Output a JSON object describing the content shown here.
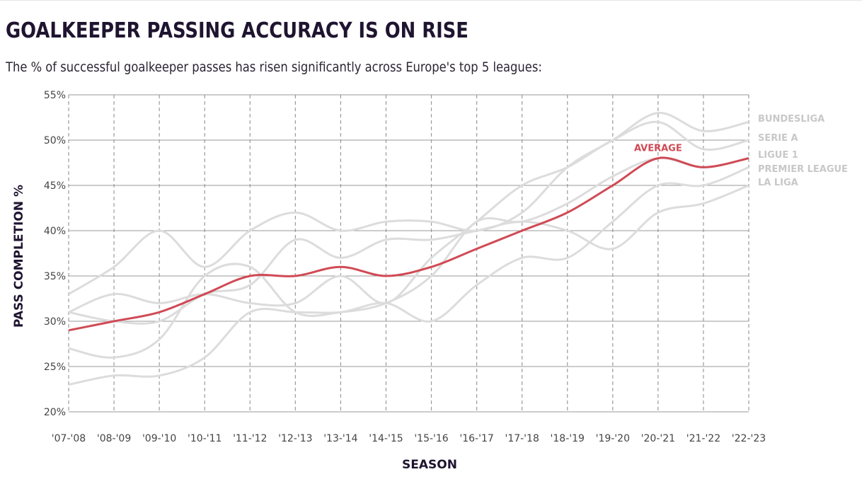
{
  "header": {
    "title": "GOALKEEPER PASSING ACCURACY IS ON RISE",
    "subtitle": "The % of successful goalkeeper passes has risen significantly across Europe's top 5 leagues:"
  },
  "colors": {
    "average": "#d04a55",
    "league": "#dcdcdc",
    "league_label": "#c8c8c8",
    "gridline": "#9a9a9a",
    "title": "#1f1430"
  },
  "chart_data": {
    "type": "line",
    "title": "GOALKEEPER PASSING ACCURACY IS ON RISE",
    "subtitle": "The % of successful goalkeeper passes has risen significantly across Europe's top 5 leagues:",
    "xlabel": "SEASON",
    "ylabel": "PASS COMPLETION %",
    "ylim": [
      20,
      55
    ],
    "y_ticks": [
      "20%",
      "25%",
      "30%",
      "35%",
      "40%",
      "45%",
      "50%",
      "55%"
    ],
    "y_tick_values": [
      20,
      25,
      30,
      35,
      40,
      45,
      50,
      55
    ],
    "grid": true,
    "categories": [
      "'07-'08",
      "'08-'09",
      "'09-'10",
      "'10-'11",
      "'11-'12",
      "'12-'13",
      "'13-'14",
      "'14-'15",
      "'15-'16",
      "'16-'17",
      "'17-'18",
      "'18-'19",
      "'19-'20",
      "'20-'21",
      "'21-'22",
      "'22-'23"
    ],
    "series": [
      {
        "name": "BUNDESLIGA",
        "values": [
          33,
          36,
          40,
          36,
          40,
          42,
          40,
          41,
          41,
          40,
          42,
          47,
          50,
          53,
          51,
          52
        ]
      },
      {
        "name": "SERIE A",
        "values": [
          31,
          33,
          32,
          33,
          32,
          32,
          35,
          32,
          37,
          41,
          45,
          47,
          50,
          52,
          49,
          50
        ]
      },
      {
        "name": "LIGUE 1",
        "values": [
          27,
          26,
          28,
          35,
          36,
          31,
          31,
          32,
          35,
          41,
          41,
          43,
          46,
          48,
          47,
          48
        ]
      },
      {
        "name": "PREMIER LEAGUE",
        "values": [
          23,
          24,
          24,
          26,
          31,
          31,
          31,
          32,
          30,
          34,
          37,
          37,
          41,
          45,
          45,
          47
        ]
      },
      {
        "name": "LA LIGA",
        "values": [
          31,
          30,
          30,
          33,
          34,
          39,
          37,
          39,
          39,
          40,
          41,
          40,
          38,
          42,
          43,
          45
        ]
      },
      {
        "name": "AVERAGE",
        "values": [
          29,
          30,
          31,
          33,
          35,
          35,
          36,
          35,
          36,
          38,
          40,
          42,
          45,
          48,
          47,
          48
        ]
      }
    ]
  }
}
